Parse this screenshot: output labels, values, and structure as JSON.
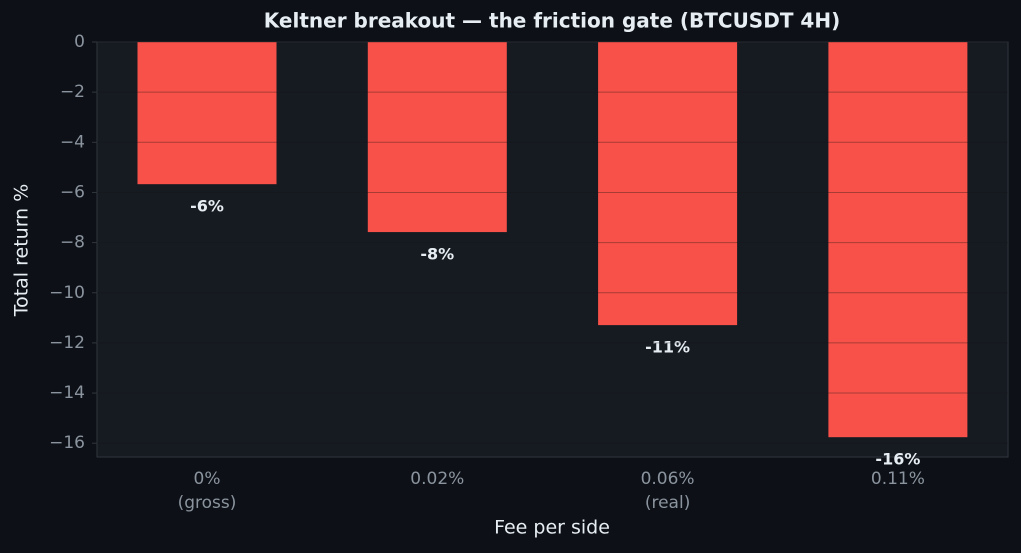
{
  "chart_data": {
    "type": "bar",
    "title": "Keltner breakout — the friction gate (BTCUSDT 4H)",
    "x_label": "Fee per side",
    "y_label": "Total return %",
    "categories": [
      "0%\n(gross)",
      "0.02%",
      "0.06%\n(real)",
      "0.11%"
    ],
    "values": [
      -5.67,
      -7.58,
      -11.29,
      -15.76
    ],
    "value_labels": [
      "-6%",
      "-8%",
      "-11%",
      "-16%"
    ],
    "color": "#f85149",
    "ylim": [
      -16.55,
      0
    ],
    "yticks": [
      {
        "value": 0,
        "label": "0"
      },
      {
        "value": -2,
        "label": "−2"
      },
      {
        "value": -4,
        "label": "−4"
      },
      {
        "value": -6,
        "label": "−6"
      },
      {
        "value": -8,
        "label": "−8"
      },
      {
        "value": -10,
        "label": "−10"
      },
      {
        "value": -12,
        "label": "−12"
      },
      {
        "value": -14,
        "label": "−14"
      },
      {
        "value": -16,
        "label": "−16"
      }
    ],
    "grid": true
  }
}
